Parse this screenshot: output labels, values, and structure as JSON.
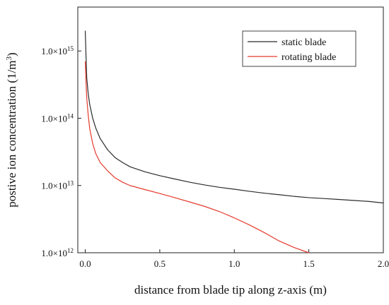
{
  "chart_data": {
    "type": "line",
    "xlabel": "distance from blade tip along z-axis (m)",
    "ylabel_main": "postive ion concentration (1/m",
    "ylabel_sup": "3",
    "ylabel_end": ")",
    "x_ticks": [
      "0.0",
      "0.5",
      "1.0",
      "1.5",
      "2.0"
    ],
    "y_ticks": [
      {
        "mantissa": "1.0×10",
        "exp": "12"
      },
      {
        "mantissa": "1.0×10",
        "exp": "13"
      },
      {
        "mantissa": "1.0×10",
        "exp": "14"
      },
      {
        "mantissa": "1.0×10",
        "exp": "15"
      }
    ],
    "xlim": [
      -0.05,
      2.0
    ],
    "ylim": [
      1000000000000.0,
      4500000000000000.0
    ],
    "y_scale": "log",
    "grid": false,
    "legend_position": "top-right",
    "series": [
      {
        "name": "static blade",
        "color": "#2b2b2b",
        "x": [
          0.0,
          0.005,
          0.01,
          0.02,
          0.03,
          0.05,
          0.07,
          0.1,
          0.15,
          0.2,
          0.25,
          0.3,
          0.4,
          0.5,
          0.6,
          0.7,
          0.8,
          0.9,
          1.0,
          1.1,
          1.2,
          1.3,
          1.4,
          1.5,
          1.6,
          1.7,
          1.8,
          1.9,
          2.0
        ],
        "y": [
          2000000000000000.0,
          850000000000000.0,
          400000000000000.0,
          230000000000000.0,
          160000000000000.0,
          100000000000000.0,
          72000000000000.0,
          50000000000000.0,
          34000000000000.0,
          26000000000000.0,
          22000000000000.0,
          19000000000000.0,
          16000000000000.0,
          14000000000000.0,
          12500000000000.0,
          11200000000000.0,
          10200000000000.0,
          9400000000000.0,
          8800000000000.0,
          8200000000000.0,
          7700000000000.0,
          7300000000000.0,
          6900000000000.0,
          6600000000000.0,
          6400000000000.0,
          6200000000000.0,
          6000000000000.0,
          5800000000000.0,
          5500000000000.0
        ]
      },
      {
        "name": "rotating blade",
        "color": "#e53a2c",
        "x": [
          0.0,
          0.005,
          0.01,
          0.02,
          0.03,
          0.05,
          0.07,
          0.1,
          0.15,
          0.2,
          0.25,
          0.3,
          0.4,
          0.5,
          0.6,
          0.7,
          0.8,
          0.9,
          1.0,
          1.1,
          1.2,
          1.3,
          1.4,
          1.5
        ],
        "y": [
          700000000000000.0,
          350000000000000.0,
          200000000000000.0,
          110000000000000.0,
          70000000000000.0,
          42000000000000.0,
          30000000000000.0,
          22000000000000.0,
          16500000000000.0,
          13000000000000.0,
          11200000000000.0,
          10000000000000.0,
          8700000000000.0,
          7600000000000.0,
          6600000000000.0,
          5700000000000.0,
          4900000000000.0,
          4100000000000.0,
          3300000000000.0,
          2600000000000.0,
          2000000000000.0,
          1500000000000.0,
          1200000000000.0,
          1000000000000.0
        ]
      }
    ]
  }
}
